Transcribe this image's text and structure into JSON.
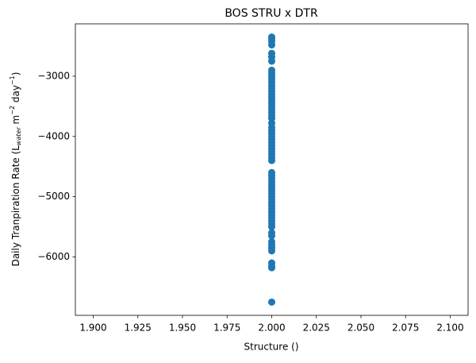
{
  "chart_data": {
    "type": "scatter",
    "title": "BOS STRU x DTR",
    "x_label": "Structure ()",
    "y_label": [
      "Daily Tranpiration Rate (L",
      "water",
      " m",
      "−2",
      " day",
      "−1",
      ")"
    ],
    "color": "#1f77b4",
    "x": [
      2,
      2,
      2,
      2,
      2,
      2,
      2,
      2,
      2,
      2,
      2,
      2,
      2,
      2,
      2,
      2,
      2,
      2,
      2,
      2,
      2,
      2,
      2,
      2,
      2,
      2,
      2,
      2,
      2,
      2,
      2,
      2,
      2,
      2,
      2,
      2,
      2,
      2,
      2,
      2,
      2,
      2,
      2,
      2,
      2,
      2,
      2,
      2,
      2,
      2,
      2,
      2,
      2,
      2,
      2,
      2,
      2,
      2,
      2,
      2,
      2,
      2,
      2,
      2,
      2,
      2
    ],
    "y": [
      -2350,
      -2380,
      -2420,
      -2480,
      -2620,
      -2680,
      -2750,
      -2900,
      -2950,
      -3000,
      -3050,
      -3100,
      -3150,
      -3200,
      -3250,
      -3300,
      -3350,
      -3400,
      -3450,
      -3500,
      -3550,
      -3600,
      -3650,
      -3700,
      -3780,
      -3850,
      -3900,
      -3950,
      -4000,
      -4050,
      -4100,
      -4150,
      -4200,
      -4250,
      -4300,
      -4350,
      -4400,
      -4600,
      -4650,
      -4700,
      -4750,
      -4800,
      -4850,
      -4900,
      -4950,
      -5000,
      -5050,
      -5100,
      -5150,
      -5200,
      -5250,
      -5300,
      -5350,
      -5400,
      -5450,
      -5500,
      -5600,
      -5650,
      -5750,
      -5800,
      -5850,
      -5900,
      -6100,
      -6150,
      -6180,
      -6750
    ],
    "xlim": [
      1.89,
      2.11
    ],
    "xticks": [
      {
        "value": 1.9,
        "label": "1.900"
      },
      {
        "value": 1.925,
        "label": "1.925"
      },
      {
        "value": 1.95,
        "label": "1.950"
      },
      {
        "value": 1.975,
        "label": "1.975"
      },
      {
        "value": 2,
        "label": "2.000"
      },
      {
        "value": 2.025,
        "label": "2.025"
      },
      {
        "value": 2.05,
        "label": "2.050"
      },
      {
        "value": 2.075,
        "label": "2.075"
      },
      {
        "value": 2.1,
        "label": "2.100"
      }
    ],
    "ylim": [
      -6970,
      -2130
    ],
    "yticks": [
      {
        "value": -6000,
        "label": "−6000"
      },
      {
        "value": -5000,
        "label": "−5000"
      },
      {
        "value": -4000,
        "label": "−4000"
      },
      {
        "value": -3000,
        "label": "−3000"
      }
    ],
    "grid": false
  }
}
